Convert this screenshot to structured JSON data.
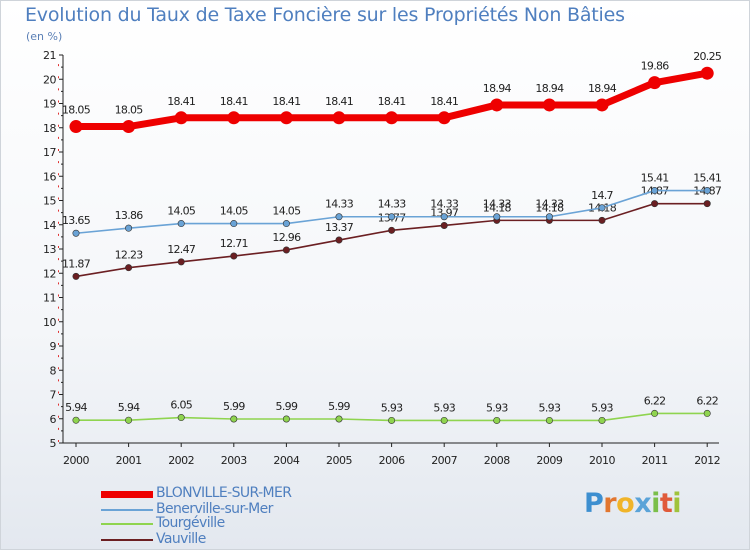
{
  "header": {
    "title": "Evolution du Taux de Taxe Foncière sur les Propriétés Non Bâties",
    "unit": "(en %)"
  },
  "brand": {
    "logo_text": "Proxiti"
  },
  "chart_data": {
    "type": "line",
    "title": "Evolution du Taux de Taxe Foncière sur les Propriétés Non Bâties",
    "ylabel": "(en %)",
    "xlabel": "",
    "ylim": [
      5,
      21
    ],
    "grid": false,
    "legend_position": "bottom-left",
    "categories": [
      "2000",
      "2001",
      "2002",
      "2003",
      "2004",
      "2005",
      "2006",
      "2007",
      "2008",
      "2009",
      "2010",
      "2011",
      "2012"
    ],
    "yticks": [
      "5",
      "6",
      "7",
      "8",
      "9",
      "10",
      "11",
      "12",
      "13",
      "14",
      "15",
      "16",
      "17",
      "18",
      "19",
      "20",
      "21"
    ],
    "series": [
      {
        "name": "Vauville",
        "color": "#6b1f22",
        "values": [
          11.87,
          12.23,
          12.47,
          12.71,
          12.96,
          13.37,
          13.77,
          13.97,
          14.18,
          14.18,
          14.18,
          14.87,
          14.87
        ],
        "labels": [
          "11.87",
          "12.23",
          "12.47",
          "12.71",
          "12.96",
          "13.37",
          "13.77",
          "13.97",
          "14.18",
          "14.18",
          "14.18",
          "14.87",
          "14.87"
        ]
      },
      {
        "name": "Tourgéville",
        "color": "#8fd44f",
        "values": [
          5.94,
          5.94,
          6.05,
          5.99,
          5.99,
          5.99,
          5.93,
          5.93,
          5.93,
          5.93,
          5.93,
          6.22,
          6.22
        ],
        "labels": [
          "5.94",
          "5.94",
          "6.05",
          "5.99",
          "5.99",
          "5.99",
          "5.93",
          "5.93",
          "5.93",
          "5.93",
          "5.93",
          "6.22",
          "6.22"
        ]
      },
      {
        "name": "Benerville-sur-Mer",
        "color": "#6aa3d6",
        "values": [
          13.65,
          13.86,
          14.05,
          14.05,
          14.05,
          14.33,
          14.33,
          14.33,
          14.33,
          14.33,
          14.7,
          15.41,
          15.41
        ],
        "labels": [
          "13.65",
          "13.86",
          "14.05",
          "14.05",
          "14.05",
          "14.33",
          "14.33",
          "14.33",
          "14.33",
          "14.33",
          "14.7",
          "15.41",
          "15.41"
        ]
      },
      {
        "name": "BLONVILLE-SUR-MER",
        "color": "#ee0000",
        "values": [
          18.05,
          18.05,
          18.41,
          18.41,
          18.41,
          18.41,
          18.41,
          18.41,
          18.94,
          18.94,
          18.94,
          19.86,
          20.25
        ],
        "labels": [
          "18.05",
          "18.05",
          "18.41",
          "18.41",
          "18.41",
          "18.41",
          "18.41",
          "18.41",
          "18.94",
          "18.94",
          "18.94",
          "19.86",
          "20.25"
        ]
      }
    ],
    "legend": [
      "BLONVILLE-SUR-MER",
      "Benerville-sur-Mer",
      "Tourgéville",
      "Vauville"
    ]
  }
}
